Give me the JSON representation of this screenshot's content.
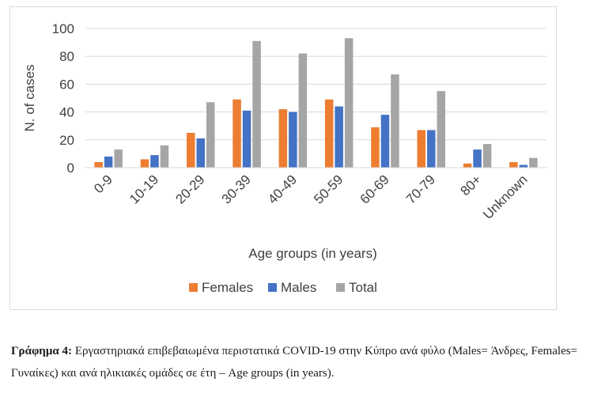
{
  "chart_data": {
    "type": "bar",
    "categories": [
      "0-9",
      "10-19",
      "20-29",
      "30-39",
      "40-49",
      "50-59",
      "60-69",
      "70-79",
      "80+",
      "Unknown"
    ],
    "series": [
      {
        "name": "Females",
        "color": "#ED7D31",
        "values": [
          4,
          6,
          25,
          49,
          42,
          49,
          29,
          27,
          3,
          4
        ]
      },
      {
        "name": "Males",
        "color": "#4472C4",
        "values": [
          8,
          9,
          21,
          41,
          40,
          44,
          38,
          27,
          13,
          2
        ]
      },
      {
        "name": "Total",
        "color": "#A5A5A5",
        "values": [
          13,
          16,
          47,
          91,
          82,
          93,
          67,
          55,
          17,
          7
        ]
      }
    ],
    "xlabel": "Age groups (in years)",
    "ylabel": "N. of cases",
    "ylim": [
      0,
      100
    ],
    "yticks": [
      0,
      20,
      40,
      60,
      80,
      100
    ],
    "grid": true,
    "legend": "bottom"
  },
  "caption": {
    "label": "Γράφημα 4:",
    "text": "Εργαστηριακά επιβεβαιωμένα περιστατικά COVID-19 στην Κύπρο ανά φύλο (Males= Άνδρες, Females= Γυναίκες) και ανά ηλικιακές ομάδες σε έτη – Age groups (in years)."
  }
}
